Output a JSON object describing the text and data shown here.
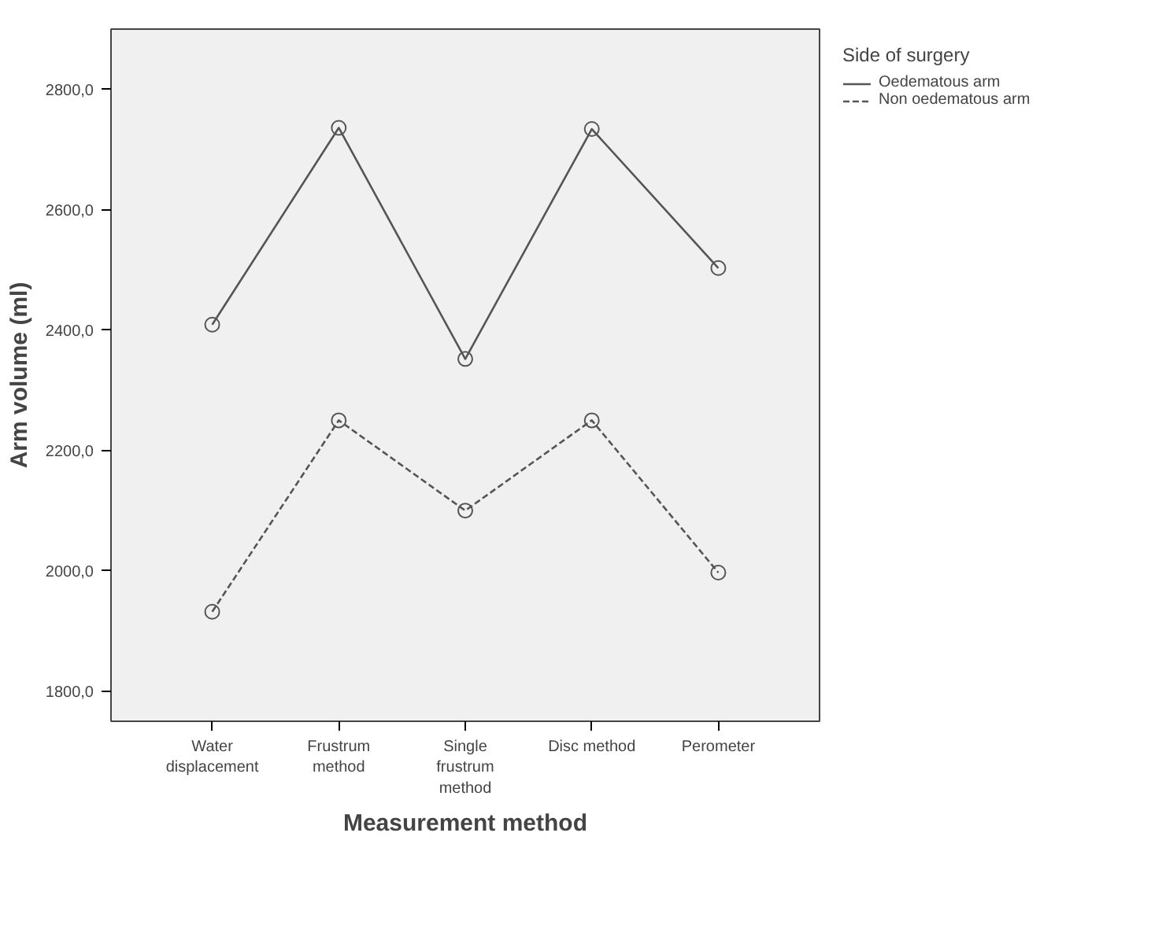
{
  "chart_data": {
    "type": "line",
    "xlabel": "Measurement method",
    "ylabel": "Arm volume (ml)",
    "legend_title": "Side of surgery",
    "categories": [
      "Water displacement",
      "Frustrum method",
      "Single frustrum method",
      "Disc method",
      "Perometer"
    ],
    "series": [
      {
        "name": "Oedematous arm",
        "color": "#555555",
        "values": [
          2409,
          2736,
          2352,
          2734,
          2503
        ],
        "line_style": "solid"
      },
      {
        "name": "Non oedematous arm",
        "color": "#555555",
        "values": [
          1932,
          2250,
          2100,
          2250,
          1997
        ],
        "line_style": "dashed"
      }
    ],
    "ylim": [
      1750,
      2900
    ],
    "yticks": [
      {
        "value": 1800,
        "label": "1800,0"
      },
      {
        "value": 2000,
        "label": "2000,0"
      },
      {
        "value": 2200,
        "label": "2200,0"
      },
      {
        "value": 2400,
        "label": "2400,0"
      },
      {
        "value": 2600,
        "label": "2600,0"
      },
      {
        "value": 2800,
        "label": "2800,0"
      }
    ],
    "marker": "circle",
    "grid": false,
    "legend": "right"
  }
}
